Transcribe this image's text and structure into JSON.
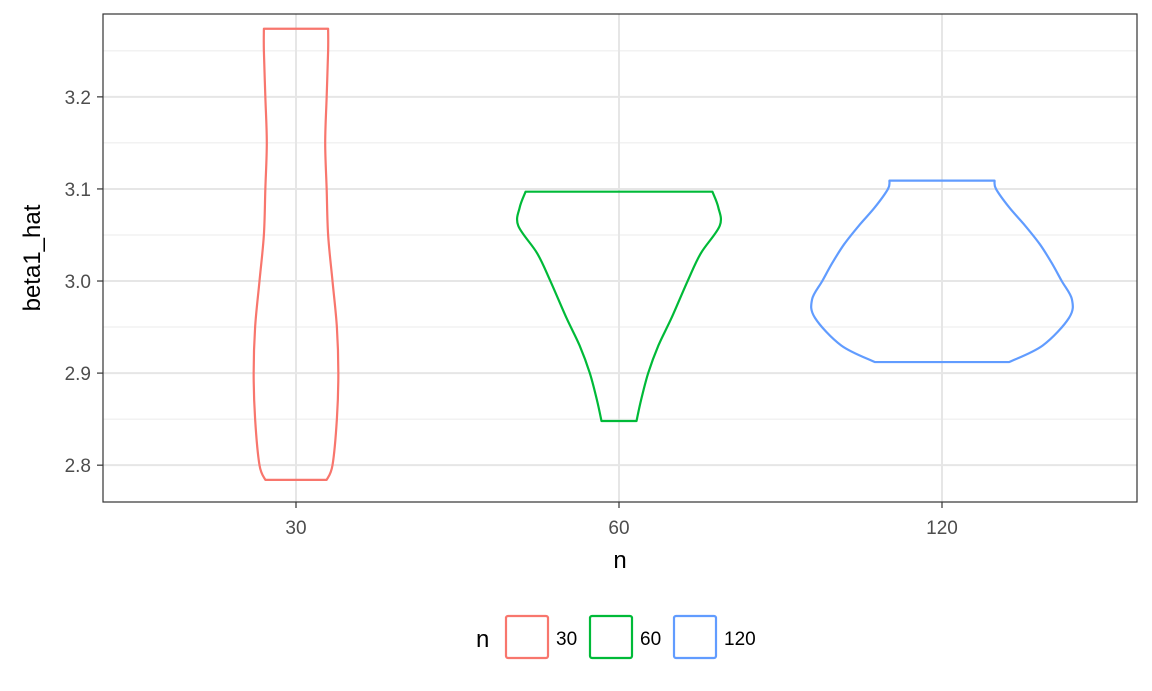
{
  "chart_data": {
    "type": "violin",
    "title": "",
    "xlabel": "n",
    "ylabel": "beta1_hat",
    "categories": [
      "30",
      "60",
      "120"
    ],
    "ylim": [
      2.76,
      3.29
    ],
    "yticks": [
      2.8,
      2.9,
      3.0,
      3.1,
      3.2
    ],
    "ytick_labels": [
      "2.8",
      "2.9",
      "3.0",
      "3.1",
      "3.2"
    ],
    "grid": true,
    "legend": {
      "title": "n",
      "position": "bottom",
      "entries": [
        "30",
        "60",
        "120"
      ]
    },
    "series": [
      {
        "name": "30",
        "color": "#F8766D",
        "min": 2.784,
        "max": 3.274,
        "density_profile": [
          [
            2.784,
            0.21
          ],
          [
            2.8,
            0.25
          ],
          [
            2.85,
            0.28
          ],
          [
            2.9,
            0.29
          ],
          [
            2.95,
            0.28
          ],
          [
            3.0,
            0.25
          ],
          [
            3.05,
            0.22
          ],
          [
            3.1,
            0.21
          ],
          [
            3.15,
            0.2
          ],
          [
            3.2,
            0.21
          ],
          [
            3.25,
            0.22
          ],
          [
            3.274,
            0.22
          ]
        ]
      },
      {
        "name": "60",
        "color": "#00BA38",
        "min": 2.848,
        "max": 3.097,
        "density_profile": [
          [
            2.848,
            0.12
          ],
          [
            2.87,
            0.15
          ],
          [
            2.9,
            0.2
          ],
          [
            2.93,
            0.27
          ],
          [
            2.96,
            0.36
          ],
          [
            3.0,
            0.47
          ],
          [
            3.03,
            0.56
          ],
          [
            3.06,
            0.69
          ],
          [
            3.08,
            0.68
          ],
          [
            3.097,
            0.64
          ]
        ]
      },
      {
        "name": "120",
        "color": "#619CFF",
        "min": 2.912,
        "max": 3.109,
        "density_profile": [
          [
            2.912,
            0.46
          ],
          [
            2.93,
            0.69
          ],
          [
            2.96,
            0.87
          ],
          [
            2.98,
            0.89
          ],
          [
            3.0,
            0.82
          ],
          [
            3.02,
            0.75
          ],
          [
            3.04,
            0.67
          ],
          [
            3.06,
            0.57
          ],
          [
            3.08,
            0.46
          ],
          [
            3.1,
            0.37
          ],
          [
            3.109,
            0.36
          ]
        ]
      }
    ]
  }
}
